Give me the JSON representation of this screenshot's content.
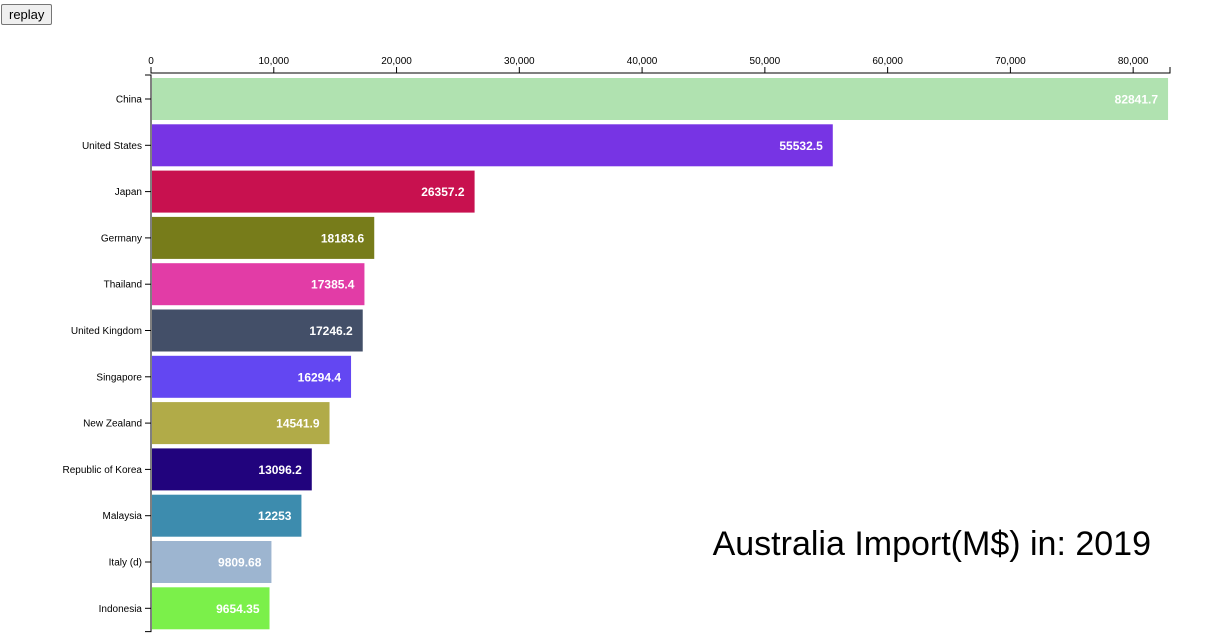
{
  "controls": {
    "replay_label": "replay"
  },
  "chart_data": {
    "type": "bar",
    "orientation": "horizontal",
    "title": "Australia Import(M$) in: 2019",
    "xlim": [
      0,
      83000
    ],
    "x_ticks": [
      {
        "value": 0,
        "label": "0"
      },
      {
        "value": 10000,
        "label": "10,000"
      },
      {
        "value": 20000,
        "label": "20,000"
      },
      {
        "value": 30000,
        "label": "30,000"
      },
      {
        "value": 40000,
        "label": "40,000"
      },
      {
        "value": 50000,
        "label": "50,000"
      },
      {
        "value": 60000,
        "label": "60,000"
      },
      {
        "value": 70000,
        "label": "70,000"
      },
      {
        "value": 80000,
        "label": "80,000"
      }
    ],
    "categories": [
      "China",
      "United States",
      "Japan",
      "Germany",
      "Thailand",
      "United Kingdom",
      "Singapore",
      "New Zealand",
      "Republic of Korea",
      "Malaysia",
      "Italy (d)",
      "Indonesia"
    ],
    "values": [
      82841.7,
      55532.5,
      26357.2,
      18183.6,
      17385.4,
      17246.2,
      16294.4,
      14541.9,
      13096.2,
      12253,
      9809.68,
      9654.35
    ],
    "value_labels": [
      "82841.7",
      "55532.5",
      "26357.2",
      "18183.6",
      "17385.4",
      "17246.2",
      "16294.4",
      "14541.9",
      "13096.2",
      "12253",
      "9809.68",
      "9654.35"
    ],
    "colors": [
      "#b0e2b0",
      "#7734e4",
      "#c8114f",
      "#777c1a",
      "#e23ca6",
      "#434f68",
      "#6347f2",
      "#b1ab48",
      "#21037d",
      "#3d8cae",
      "#9db5d0",
      "#7bf04a"
    ]
  }
}
